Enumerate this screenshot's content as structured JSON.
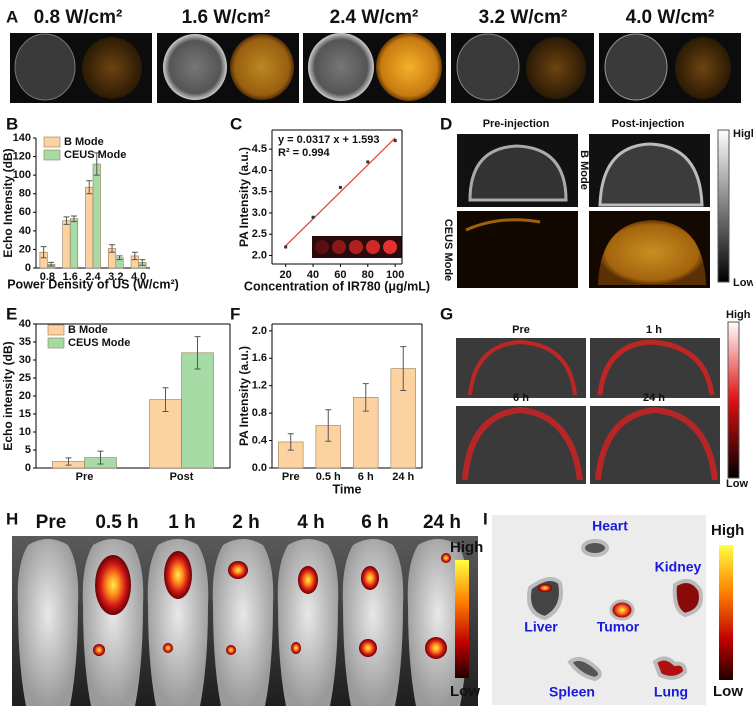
{
  "chart_data": [
    {
      "type": "bar",
      "panel_label": "B",
      "categories": [
        "0.8",
        "1.6",
        "2.4",
        "3.2",
        "4.0"
      ],
      "series": [
        {
          "name": "B Mode",
          "color": "#fcd3a0",
          "values": [
            17,
            51,
            87,
            21,
            13
          ],
          "errors": [
            6,
            4,
            7,
            4,
            4
          ]
        },
        {
          "name": "CEUS Mode",
          "color": "#a6dba6",
          "values": [
            4,
            53,
            112,
            11,
            6
          ],
          "errors": [
            2,
            3,
            12,
            2,
            3
          ]
        }
      ],
      "ylim": [
        0,
        140
      ],
      "yticks": [
        0,
        20,
        40,
        60,
        80,
        100,
        120,
        140
      ],
      "xlabel": "Power Density of US (W/cm²)",
      "ylabel": "Echo Intensity (dB)"
    },
    {
      "type": "scatter",
      "panel_label": "C",
      "x": [
        20,
        40,
        60,
        80,
        100
      ],
      "values": [
        2.2,
        2.9,
        3.6,
        4.2,
        4.7
      ],
      "color": "#333333",
      "line_x": [
        20,
        100
      ],
      "line_values": [
        2.227,
        4.763
      ],
      "line_color": "#e53935",
      "annotations": [
        "y = 0.0317 x + 1.593",
        "R² = 0.994"
      ],
      "xlim": [
        10,
        105
      ],
      "xticks": [
        20,
        40,
        60,
        80,
        100
      ],
      "ylim": [
        1.8,
        4.95
      ],
      "yticks": [
        {
          "value": 2,
          "label": "2.0"
        },
        2.5,
        {
          "value": 3,
          "label": "3.0"
        },
        3.5,
        {
          "value": 4,
          "label": "4.0"
        },
        4.5
      ],
      "xlabel": "Concentration of IR780 (μg/mL)",
      "ylabel": "PA Intensity (a.u.)"
    },
    {
      "type": "bar",
      "panel_label": "E",
      "categories": [
        "Pre",
        "Post"
      ],
      "series": [
        {
          "name": "B Mode",
          "color": "#fcd3a0",
          "values": [
            1.8,
            19
          ],
          "errors": [
            1,
            3.3
          ]
        },
        {
          "name": "CEUS Mode",
          "color": "#a6dba6",
          "values": [
            2.9,
            32
          ],
          "errors": [
            1.8,
            4.5
          ]
        }
      ],
      "ylim": [
        0,
        40
      ],
      "yticks": [
        0,
        5,
        10,
        15,
        20,
        25,
        30,
        35,
        40
      ],
      "ylabel": "Echo intensity (dB)"
    },
    {
      "type": "bar",
      "panel_label": "F",
      "categories": [
        "Pre",
        "0.5 h",
        "6 h",
        "24 h"
      ],
      "values": [
        0.38,
        0.62,
        1.03,
        1.45
      ],
      "errors": [
        0.12,
        0.23,
        0.2,
        0.32
      ],
      "color": "#fcd3a0",
      "ylim": [
        0,
        2.1
      ],
      "yticks": [
        {
          "value": 0,
          "label": "0.0"
        },
        0.4,
        0.8,
        1.2,
        1.6,
        {
          "value": 2,
          "label": "2.0"
        }
      ],
      "xlabel": "Time",
      "ylabel": "PA Intensity (a.u.)"
    }
  ],
  "panel_A": {
    "label": "A",
    "powers": [
      "0.8 W/cm²",
      "1.6 W/cm²",
      "2.4 W/cm²",
      "3.2 W/cm²",
      "4.0 W/cm²"
    ]
  },
  "panel_D": {
    "label": "D",
    "columns": [
      "Pre-injection",
      "Post-injection"
    ],
    "rows": [
      "B Mode",
      "CEUS Mode"
    ],
    "scale": [
      "High",
      "Low"
    ]
  },
  "panel_G": {
    "label": "G",
    "frames": [
      "Pre",
      "1 h",
      "6 h",
      "24 h"
    ],
    "scale": [
      "High",
      "Low"
    ]
  },
  "panel_H": {
    "label": "H",
    "times": [
      "Pre",
      "0.5 h",
      "1 h",
      "2 h",
      "4 h",
      "6 h",
      "24 h"
    ],
    "scale": [
      "High",
      "Low"
    ]
  },
  "panel_I": {
    "label": "I",
    "organs": [
      "Heart",
      "Kidney",
      "Liver",
      "Tumor",
      "Spleen",
      "Lung"
    ],
    "scale": [
      "High",
      "Low"
    ]
  }
}
